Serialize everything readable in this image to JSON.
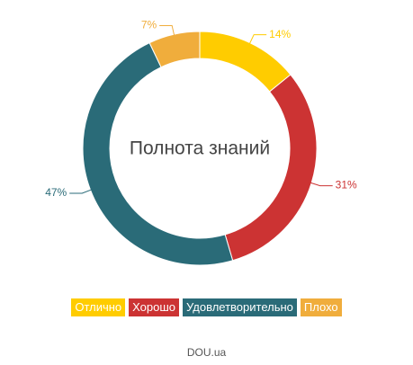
{
  "chart_data": {
    "type": "pie",
    "variant": "donut",
    "title": "Полнота знаний",
    "categories": [
      "Отлично",
      "Хорошо",
      "Удовлетворительно",
      "Плохо"
    ],
    "values": [
      14,
      31,
      47,
      7
    ],
    "value_labels": [
      "14%",
      "31%",
      "47%",
      "7%"
    ],
    "colors": [
      "#ffcc00",
      "#cc3333",
      "#2a6b78",
      "#f0ad3c"
    ],
    "legend_position": "bottom"
  },
  "source": "DOU.ua"
}
